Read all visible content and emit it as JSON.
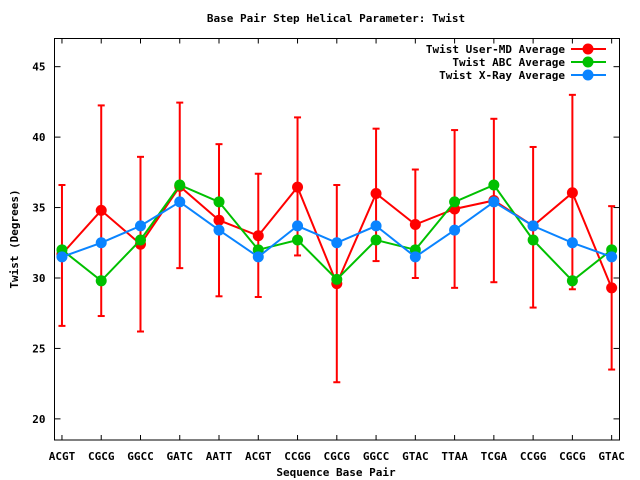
{
  "chart_data": {
    "type": "line",
    "title": "Base Pair Step Helical Parameter: Twist",
    "xlabel": "Sequence Base Pair",
    "ylabel": "Twist (Degrees)",
    "categories": [
      "ACGT",
      "CGCG",
      "GGCC",
      "GATC",
      "AATT",
      "ACGT",
      "CCGG",
      "CGCG",
      "GGCC",
      "GTAC",
      "TTAA",
      "TCGA",
      "CCGG",
      "CGCG",
      "GTAC"
    ],
    "xlim": [
      -0.19,
      14.2
    ],
    "ylim": [
      18.5,
      47
    ],
    "yticks": [
      20,
      25,
      30,
      35,
      40,
      45
    ],
    "grid": false,
    "legend_position": "top-right",
    "series": [
      {
        "name": "Twist User-MD Average",
        "color": "#ff0000",
        "values": [
          31.7,
          34.8,
          32.4,
          36.5,
          34.1,
          33.0,
          36.45,
          29.6,
          36.0,
          33.8,
          34.9,
          35.5,
          33.7,
          36.05,
          29.3
        ],
        "error_low": [
          26.6,
          27.3,
          26.2,
          30.7,
          28.7,
          28.65,
          31.6,
          22.6,
          31.2,
          30.0,
          29.3,
          29.7,
          27.9,
          29.2,
          23.5
        ],
        "error_high": [
          36.6,
          42.25,
          38.6,
          42.45,
          39.5,
          37.4,
          41.4,
          36.6,
          40.6,
          37.7,
          40.5,
          41.3,
          39.3,
          43.0,
          35.1
        ]
      },
      {
        "name": "Twist ABC Average",
        "color": "#00c000",
        "values": [
          32.0,
          29.8,
          32.7,
          36.6,
          35.4,
          32.0,
          32.7,
          29.9,
          32.7,
          32.0,
          35.4,
          36.6,
          32.7,
          29.8,
          32.0
        ]
      },
      {
        "name": "Twist X-Ray Average",
        "color": "#0a84ff",
        "values": [
          31.5,
          32.5,
          33.7,
          35.4,
          33.4,
          31.5,
          33.7,
          32.5,
          33.7,
          31.5,
          33.4,
          35.4,
          33.7,
          32.5,
          31.5
        ]
      }
    ]
  }
}
